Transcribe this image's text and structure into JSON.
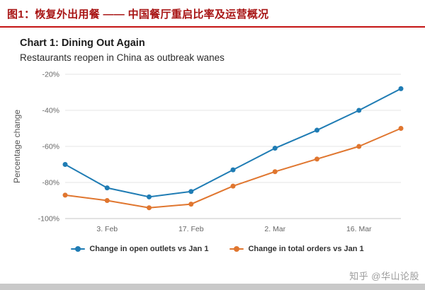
{
  "header": {
    "title": "图1：恢复外出用餐 —— 中国餐厅重启比率及运营概况"
  },
  "watermark": {
    "text": "知乎 @华山论股"
  },
  "colors": {
    "headline_red": "#a81414",
    "rule_red": "#c41414",
    "series_blue": "#1f7cb4",
    "series_orange": "#e0762f"
  },
  "chart_data": {
    "type": "line",
    "title": "Chart 1: Dining Out Again",
    "subtitle": "Restaurants reopen in China as outbreak wanes",
    "ylabel": "Percentage change",
    "ylim": [
      -100,
      -20
    ],
    "yticks": [
      -20,
      -40,
      -60,
      -80,
      -100
    ],
    "ytick_labels": [
      "-20%",
      "-40%",
      "-60%",
      "-80%",
      "-100%"
    ],
    "x_count": 9,
    "xticks": [
      {
        "index": 1,
        "label": "3. Feb"
      },
      {
        "index": 3,
        "label": "17. Feb"
      },
      {
        "index": 5,
        "label": "2. Mar"
      },
      {
        "index": 7,
        "label": "16. Mar"
      }
    ],
    "grid": true,
    "legend_position": "bottom",
    "series": [
      {
        "name": "Change in open outlets vs Jan 1",
        "color": "#1f7cb4",
        "values": [
          -70,
          -83,
          -88,
          -85,
          -73,
          -61,
          -51,
          -40,
          -28
        ]
      },
      {
        "name": "Change in total orders vs Jan 1",
        "color": "#e0762f",
        "values": [
          -87,
          -90,
          -94,
          -92,
          -82,
          -74,
          -67,
          -60,
          -50
        ]
      }
    ]
  }
}
